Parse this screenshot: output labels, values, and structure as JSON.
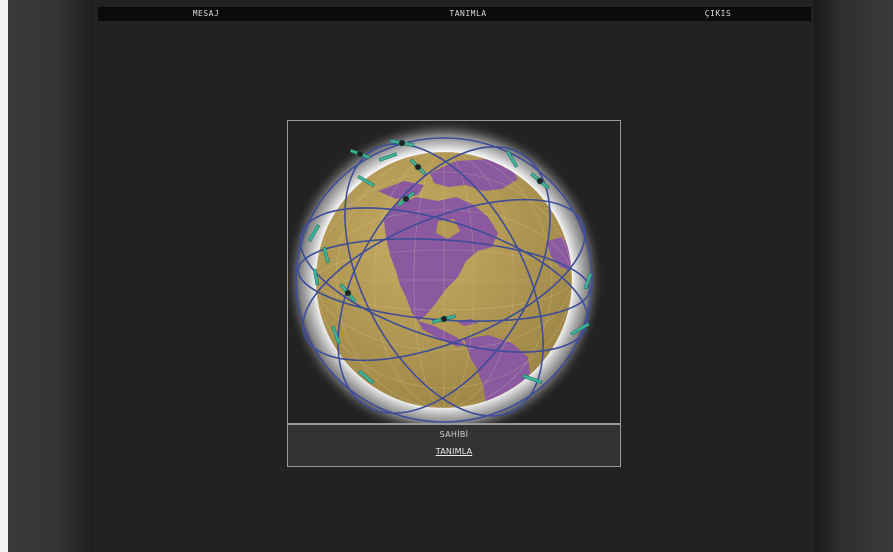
{
  "nav": {
    "items": [
      {
        "id": "mesaj",
        "label": "MESAJ"
      },
      {
        "id": "tanimla",
        "label": "TANIMLA"
      },
      {
        "id": "cikis",
        "label": "ÇIKIS"
      }
    ]
  },
  "owner": {
    "label": "SAHİBİ",
    "link_label": "TANIMLA"
  },
  "colors": {
    "page_background": "#222222",
    "nav_background": "#0b0b0b",
    "ocean": "#b39a55",
    "land": "#8a59a0",
    "orbit": "#3e4c9a",
    "satellite": "#3db39a"
  }
}
